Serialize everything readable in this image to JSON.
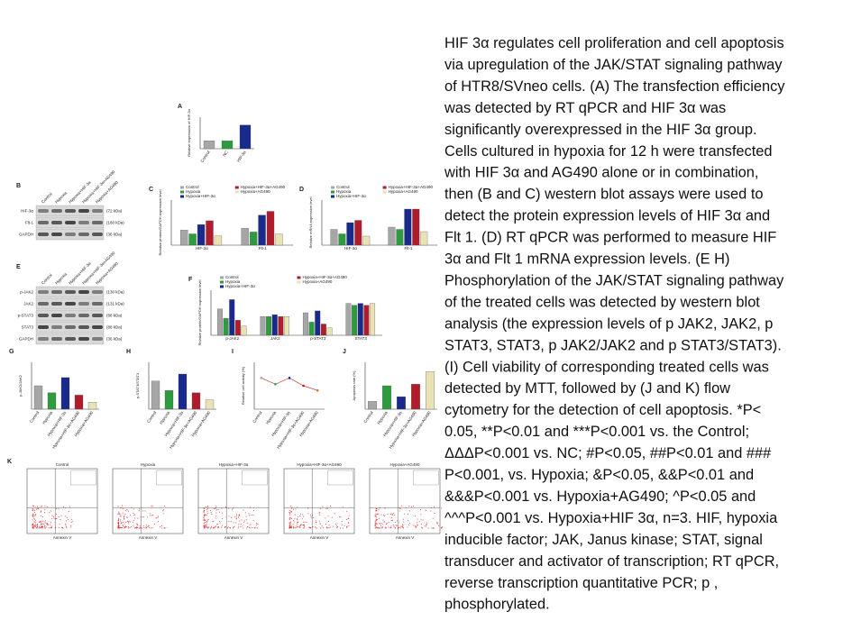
{
  "figure": {
    "panels": [
      {
        "letter": "A",
        "type": "bar",
        "y_label": "Relative expression of HIF-3α",
        "categories": [
          "Control",
          "NC",
          "HIF-3α"
        ],
        "values": [
          1.0,
          1.0,
          3.0
        ],
        "ylim": [
          0,
          4
        ],
        "colors": [
          "#a6a6a6",
          "#2e9b3e",
          "#1a2a8c"
        ]
      },
      {
        "letter": "B",
        "type": "blot",
        "lanes": [
          "Control",
          "Hypoxia",
          "Hypoxia+HIF-3α",
          "Hypoxia+HIF-3α+AG490",
          "Hypoxia+AG490"
        ],
        "rows": [
          "HIF-3α",
          "Flt-1",
          "GAPDH"
        ],
        "sizes": [
          "(72 kDa)",
          "(180 kDa)",
          "(36 kDa)"
        ]
      },
      {
        "letter": "C",
        "type": "grouped",
        "y_label": "Relative protein/GAPDH expression level",
        "groups": [
          "HIF-3α",
          "Flt-1"
        ],
        "ylim": [
          0,
          1.2
        ],
        "series": [
          {
            "name": "Control",
            "color": "#a6a6a6",
            "values": [
              0.4,
              0.45
            ]
          },
          {
            "name": "Hypoxia",
            "color": "#2e9b3e",
            "values": [
              0.3,
              0.35
            ]
          },
          {
            "name": "Hypoxia+HIF-3α",
            "color": "#1a2a8c",
            "values": [
              0.55,
              0.8
            ]
          },
          {
            "name": "Hypoxia+HIF-3α+AG490",
            "color": "#b01c2c",
            "values": [
              0.65,
              0.9
            ]
          },
          {
            "name": "Hypoxia+AG490",
            "color": "#e8e2b4",
            "values": [
              0.25,
              0.3
            ]
          }
        ]
      },
      {
        "letter": "D",
        "type": "grouped",
        "y_label": "Relative mRNA expression level",
        "groups": [
          "HIF-3α",
          "Flt-1"
        ],
        "ylim": [
          0,
          1
        ],
        "series": [
          {
            "name": "Control",
            "color": "#a6a6a6",
            "values": [
              0.35,
              0.4
            ]
          },
          {
            "name": "Hypoxia",
            "color": "#2e9b3e",
            "values": [
              0.25,
              0.35
            ]
          },
          {
            "name": "Hypoxia+HIF-3α",
            "color": "#1a2a8c",
            "values": [
              0.5,
              0.8
            ]
          },
          {
            "name": "Hypoxia+HIF-3α+AG490",
            "color": "#b01c2c",
            "values": [
              0.55,
              0.8
            ]
          },
          {
            "name": "Hypoxia+AG490",
            "color": "#e8e2b4",
            "values": [
              0.2,
              0.3
            ]
          }
        ]
      },
      {
        "letter": "E",
        "type": "blot",
        "lanes": [
          "Control",
          "Hypoxia",
          "Hypoxia+HIF-3α",
          "Hypoxia+HIF-3α+AG490",
          "Hypoxia+AG490"
        ],
        "rows": [
          "p-JAK2",
          "JAK2",
          "p-STAT3",
          "STAT3",
          "GAPDH"
        ],
        "sizes": [
          "(130 kDa)",
          "(131 kDa)",
          "(88 kDa)",
          "(88 kDa)",
          "(36 kDa)"
        ]
      },
      {
        "letter": "F",
        "type": "grouped",
        "y_label": "Relative protein/GAPDH expression level",
        "groups": [
          "p-JAK2",
          "JAK2",
          "p-STAT3",
          "STAT3"
        ],
        "ylim": [
          0,
          1.2
        ],
        "series": [
          {
            "name": "Control",
            "color": "#a6a6a6",
            "values": [
              0.7,
              0.5,
              0.6,
              0.85
            ]
          },
          {
            "name": "Hypoxia",
            "color": "#2e9b3e",
            "values": [
              0.45,
              0.5,
              0.35,
              0.8
            ]
          },
          {
            "name": "Hypoxia+HIF-3α",
            "color": "#1a2a8c",
            "values": [
              0.95,
              0.55,
              0.65,
              0.85
            ]
          },
          {
            "name": "Hypoxia+HIF-3α+AG490",
            "color": "#b01c2c",
            "values": [
              0.4,
              0.5,
              0.3,
              0.8
            ]
          },
          {
            "name": "Hypoxia+AG490",
            "color": "#e8e2b4",
            "values": [
              0.25,
              0.5,
              0.2,
              0.85
            ]
          }
        ]
      },
      {
        "letter": "G",
        "type": "bar",
        "y_label": "p-JAK2/JAK2",
        "categories": [
          "Control",
          "Hypoxia",
          "Hypoxia+HIF-3α",
          "Hypoxia+HIF-3α+AG490",
          "Hypoxia+AG490"
        ],
        "values": [
          1.0,
          0.7,
          1.35,
          0.6,
          0.3
        ],
        "ylim": [
          0,
          2
        ],
        "colors": [
          "#a6a6a6",
          "#2e9b3e",
          "#1a2a8c",
          "#b01c2c",
          "#e8e2b4"
        ]
      },
      {
        "letter": "H",
        "type": "bar",
        "y_label": "p-STAT3/STAT3",
        "categories": [
          "Control",
          "Hypoxia",
          "Hypoxia+HIF-3α",
          "Hypoxia+HIF-3α+AG490",
          "Hypoxia+AG490"
        ],
        "values": [
          0.6,
          0.4,
          0.75,
          0.35,
          0.2
        ],
        "ylim": [
          0,
          1
        ],
        "colors": [
          "#a6a6a6",
          "#2e9b3e",
          "#1a2a8c",
          "#b01c2c",
          "#e8e2b4"
        ]
      },
      {
        "letter": "I",
        "type": "line",
        "y_label": "Relative cell activity (%)",
        "categories": [
          "Control",
          "Hypoxia",
          "Hypoxia+HIF-3α",
          "Hypoxia+HIF-3α+AG490",
          "Hypoxia+AG490"
        ],
        "values": [
          1.0,
          0.8,
          1.0,
          0.75,
          0.6
        ],
        "ylim": [
          0,
          1.5
        ],
        "colors": [
          "#a6a6a6",
          "#2e9b3e",
          "#1a2a8c",
          "#b01c2c",
          "#c87a30"
        ]
      },
      {
        "letter": "J",
        "type": "bar",
        "y_label": "Apoptosis rate (%)",
        "categories": [
          "Control",
          "Hypoxia",
          "Hypoxia+HIF-3α",
          "Hypoxia+HIF-3α+AG490",
          "Hypoxia+AG490"
        ],
        "values": [
          5,
          15,
          8,
          16,
          24
        ],
        "ylim": [
          0,
          30
        ],
        "colors": [
          "#a6a6a6",
          "#2e9b3e",
          "#1a2a8c",
          "#b01c2c",
          "#e8e2b4"
        ]
      },
      {
        "letter": "K",
        "type": "flow",
        "titles": [
          "Control",
          "Hypoxia",
          "Hypoxia+HIF-3α",
          "Hypoxia+HIF-3α+AG490",
          "Hypoxia+AG490"
        ],
        "x_label": "Annexin V"
      }
    ],
    "caption": [
      "HIF 3α regulates cell proliferation and cell apoptosis",
      "via upregulation of the JAK/STAT signaling pathway",
      "of HTR8/SVneo cells. (A) The transfection efficiency",
      "was detected by RT qPCR and HIF 3α was",
      "significantly overexpressed in the HIF 3α group.",
      "Cells cultured in hypoxia for 12 h were transfected",
      "with HIF 3α and AG490 alone or in combination,",
      "then (B and C) western blot assays were used to",
      "detect the protein expression levels of HIF 3α and",
      "Flt 1. (D) RT qPCR was performed to measure HIF",
      "3α and Flt 1 mRNA expression levels. (E H)",
      "Phosphorylation of the JAK/STAT signaling pathway",
      "of the treated cells was detected by western blot",
      "analysis (the expression levels of p JAK2, JAK2, p",
      "STAT3, STAT3, p JAK2/JAK2 and p STAT3/STAT3).",
      "(I) Cell viability of corresponding treated cells was",
      "detected by MTT, followed by (J and K) flow",
      "cytometry for the detection of cell apoptosis. *P<",
      "0.05, **P<0.01 and ***P<0.001 vs. the Control;",
      "ΔΔΔP<0.001 vs. NC; #P<0.05, ##P<0.01 and ###",
      "P<0.001, vs. Hypoxia; &P<0.05, &&P<0.01 and",
      "&&&P<0.001 vs. Hypoxia+AG490; ^P<0.05 and",
      "^^^P<0.001 vs. Hypoxia+HIF 3α, n=3. HIF, hypoxia",
      "inducible factor; JAK, Janus kinase; STAT, signal",
      "transducer and activator of transcription; RT qPCR,",
      "reverse transcription quantitative PCR; p ,",
      "phosphorylated."
    ]
  }
}
